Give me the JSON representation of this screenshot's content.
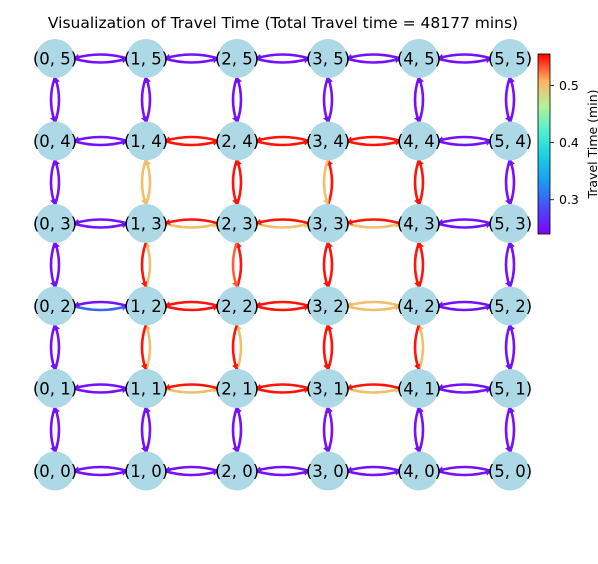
{
  "title": "Visualization of Travel Time (Total Travel time = 48177 mins)",
  "colorbar": {
    "label": "Travel Time (min)",
    "ticks": [
      {
        "value": 0.3,
        "text": "0.3"
      },
      {
        "value": 0.4,
        "text": "0.4"
      },
      {
        "value": 0.5,
        "text": "0.5"
      }
    ],
    "range": [
      0.24,
      0.555
    ],
    "colormap": "rainbow"
  },
  "grid": {
    "cols": 6,
    "rows": 6
  },
  "node_color": "#add8e6",
  "nodes": [
    {
      "label": "(0, 0)",
      "x": 0,
      "y": 0
    },
    {
      "label": "(1, 0)",
      "x": 1,
      "y": 0
    },
    {
      "label": "(2, 0)",
      "x": 2,
      "y": 0
    },
    {
      "label": "(3, 0)",
      "x": 3,
      "y": 0
    },
    {
      "label": "(4, 0)",
      "x": 4,
      "y": 0
    },
    {
      "label": "(5, 0)",
      "x": 5,
      "y": 0
    },
    {
      "label": "(0, 1)",
      "x": 0,
      "y": 1
    },
    {
      "label": "(1, 1)",
      "x": 1,
      "y": 1
    },
    {
      "label": "(2, 1)",
      "x": 2,
      "y": 1
    },
    {
      "label": "(3, 1)",
      "x": 3,
      "y": 1
    },
    {
      "label": "(4, 1)",
      "x": 4,
      "y": 1
    },
    {
      "label": "(5, 1)",
      "x": 5,
      "y": 1
    },
    {
      "label": "(0, 2)",
      "x": 0,
      "y": 2
    },
    {
      "label": "(1, 2)",
      "x": 1,
      "y": 2
    },
    {
      "label": "(2, 2)",
      "x": 2,
      "y": 2
    },
    {
      "label": "(3, 2)",
      "x": 3,
      "y": 2
    },
    {
      "label": "(4, 2)",
      "x": 4,
      "y": 2
    },
    {
      "label": "(5, 2)",
      "x": 5,
      "y": 2
    },
    {
      "label": "(0, 3)",
      "x": 0,
      "y": 3
    },
    {
      "label": "(1, 3)",
      "x": 1,
      "y": 3
    },
    {
      "label": "(2, 3)",
      "x": 2,
      "y": 3
    },
    {
      "label": "(3, 3)",
      "x": 3,
      "y": 3
    },
    {
      "label": "(4, 3)",
      "x": 4,
      "y": 3
    },
    {
      "label": "(5, 3)",
      "x": 5,
      "y": 3
    },
    {
      "label": "(0, 4)",
      "x": 0,
      "y": 4
    },
    {
      "label": "(1, 4)",
      "x": 1,
      "y": 4
    },
    {
      "label": "(2, 4)",
      "x": 2,
      "y": 4
    },
    {
      "label": "(3, 4)",
      "x": 3,
      "y": 4
    },
    {
      "label": "(4, 4)",
      "x": 4,
      "y": 4
    },
    {
      "label": "(5, 4)",
      "x": 5,
      "y": 4
    },
    {
      "label": "(0, 5)",
      "x": 0,
      "y": 5
    },
    {
      "label": "(1, 5)",
      "x": 1,
      "y": 5
    },
    {
      "label": "(2, 5)",
      "x": 2,
      "y": 5
    },
    {
      "label": "(3, 5)",
      "x": 3,
      "y": 5
    },
    {
      "label": "(4, 5)",
      "x": 4,
      "y": 5
    },
    {
      "label": "(5, 5)",
      "x": 5,
      "y": 5
    }
  ],
  "edges": [
    {
      "from": [
        0,
        5
      ],
      "to": [
        1,
        5
      ],
      "ab": 0.25,
      "ba": 0.25
    },
    {
      "from": [
        1,
        5
      ],
      "to": [
        2,
        5
      ],
      "ab": 0.25,
      "ba": 0.25
    },
    {
      "from": [
        2,
        5
      ],
      "to": [
        3,
        5
      ],
      "ab": 0.25,
      "ba": 0.25
    },
    {
      "from": [
        3,
        5
      ],
      "to": [
        4,
        5
      ],
      "ab": 0.25,
      "ba": 0.25
    },
    {
      "from": [
        4,
        5
      ],
      "to": [
        5,
        5
      ],
      "ab": 0.25,
      "ba": 0.25
    },
    {
      "from": [
        0,
        4
      ],
      "to": [
        1,
        4
      ],
      "ab": 0.25,
      "ba": 0.25
    },
    {
      "from": [
        1,
        4
      ],
      "to": [
        2,
        4
      ],
      "ab": 0.55,
      "ba": 0.55
    },
    {
      "from": [
        2,
        4
      ],
      "to": [
        3,
        4
      ],
      "ab": 0.55,
      "ba": 0.55
    },
    {
      "from": [
        3,
        4
      ],
      "to": [
        4,
        4
      ],
      "ab": 0.55,
      "ba": 0.55
    },
    {
      "from": [
        4,
        4
      ],
      "to": [
        5,
        4
      ],
      "ab": 0.25,
      "ba": 0.25
    },
    {
      "from": [
        0,
        3
      ],
      "to": [
        1,
        3
      ],
      "ab": 0.25,
      "ba": 0.25
    },
    {
      "from": [
        1,
        3
      ],
      "to": [
        2,
        3
      ],
      "ab": 0.5,
      "ba": 0.55
    },
    {
      "from": [
        2,
        3
      ],
      "to": [
        3,
        3
      ],
      "ab": 0.5,
      "ba": 0.55
    },
    {
      "from": [
        3,
        3
      ],
      "to": [
        4,
        3
      ],
      "ab": 0.5,
      "ba": 0.55
    },
    {
      "from": [
        4,
        3
      ],
      "to": [
        5,
        3
      ],
      "ab": 0.25,
      "ba": 0.25
    },
    {
      "from": [
        0,
        2
      ],
      "to": [
        1,
        2
      ],
      "ab": 0.3,
      "ba": 0.25
    },
    {
      "from": [
        1,
        2
      ],
      "to": [
        2,
        2
      ],
      "ab": 0.55,
      "ba": 0.55
    },
    {
      "from": [
        2,
        2
      ],
      "to": [
        3,
        2
      ],
      "ab": 0.55,
      "ba": 0.55
    },
    {
      "from": [
        3,
        2
      ],
      "to": [
        4,
        2
      ],
      "ab": 0.5,
      "ba": 0.5
    },
    {
      "from": [
        4,
        2
      ],
      "to": [
        5,
        2
      ],
      "ab": 0.25,
      "ba": 0.25
    },
    {
      "from": [
        0,
        1
      ],
      "to": [
        1,
        1
      ],
      "ab": 0.25,
      "ba": 0.25
    },
    {
      "from": [
        1,
        1
      ],
      "to": [
        2,
        1
      ],
      "ab": 0.5,
      "ba": 0.55
    },
    {
      "from": [
        2,
        1
      ],
      "to": [
        3,
        1
      ],
      "ab": 0.55,
      "ba": 0.55
    },
    {
      "from": [
        3,
        1
      ],
      "to": [
        4,
        1
      ],
      "ab": 0.5,
      "ba": 0.55
    },
    {
      "from": [
        4,
        1
      ],
      "to": [
        5,
        1
      ],
      "ab": 0.25,
      "ba": 0.25
    },
    {
      "from": [
        0,
        0
      ],
      "to": [
        1,
        0
      ],
      "ab": 0.25,
      "ba": 0.25
    },
    {
      "from": [
        1,
        0
      ],
      "to": [
        2,
        0
      ],
      "ab": 0.25,
      "ba": 0.25
    },
    {
      "from": [
        2,
        0
      ],
      "to": [
        3,
        0
      ],
      "ab": 0.25,
      "ba": 0.25
    },
    {
      "from": [
        3,
        0
      ],
      "to": [
        4,
        0
      ],
      "ab": 0.25,
      "ba": 0.25
    },
    {
      "from": [
        4,
        0
      ],
      "to": [
        5,
        0
      ],
      "ab": 0.25,
      "ba": 0.25
    },
    {
      "from": [
        0,
        4
      ],
      "to": [
        0,
        5
      ],
      "ab": 0.25,
      "ba": 0.25
    },
    {
      "from": [
        0,
        3
      ],
      "to": [
        0,
        4
      ],
      "ab": 0.25,
      "ba": 0.25
    },
    {
      "from": [
        0,
        2
      ],
      "to": [
        0,
        3
      ],
      "ab": 0.25,
      "ba": 0.25
    },
    {
      "from": [
        0,
        1
      ],
      "to": [
        0,
        2
      ],
      "ab": 0.25,
      "ba": 0.25
    },
    {
      "from": [
        0,
        0
      ],
      "to": [
        0,
        1
      ],
      "ab": 0.25,
      "ba": 0.25
    },
    {
      "from": [
        1,
        4
      ],
      "to": [
        1,
        5
      ],
      "ab": 0.25,
      "ba": 0.25
    },
    {
      "from": [
        1,
        3
      ],
      "to": [
        1,
        4
      ],
      "ab": 0.5,
      "ba": 0.5
    },
    {
      "from": [
        1,
        2
      ],
      "to": [
        1,
        3
      ],
      "ab": 0.5,
      "ba": 0.55
    },
    {
      "from": [
        1,
        1
      ],
      "to": [
        1,
        2
      ],
      "ab": 0.5,
      "ba": 0.55
    },
    {
      "from": [
        1,
        0
      ],
      "to": [
        1,
        1
      ],
      "ab": 0.25,
      "ba": 0.25
    },
    {
      "from": [
        2,
        4
      ],
      "to": [
        2,
        5
      ],
      "ab": 0.25,
      "ba": 0.25
    },
    {
      "from": [
        2,
        3
      ],
      "to": [
        2,
        4
      ],
      "ab": 0.55,
      "ba": 0.55
    },
    {
      "from": [
        2,
        2
      ],
      "to": [
        2,
        3
      ],
      "ab": 0.55,
      "ba": 0.53
    },
    {
      "from": [
        2,
        1
      ],
      "to": [
        2,
        2
      ],
      "ab": 0.5,
      "ba": 0.55
    },
    {
      "from": [
        2,
        0
      ],
      "to": [
        2,
        1
      ],
      "ab": 0.25,
      "ba": 0.25
    },
    {
      "from": [
        3,
        4
      ],
      "to": [
        3,
        5
      ],
      "ab": 0.25,
      "ba": 0.25
    },
    {
      "from": [
        3,
        3
      ],
      "to": [
        3,
        4
      ],
      "ab": 0.55,
      "ba": 0.5
    },
    {
      "from": [
        3,
        2
      ],
      "to": [
        3,
        3
      ],
      "ab": 0.55,
      "ba": 0.55
    },
    {
      "from": [
        3,
        1
      ],
      "to": [
        3,
        2
      ],
      "ab": 0.55,
      "ba": 0.55
    },
    {
      "from": [
        3,
        0
      ],
      "to": [
        3,
        1
      ],
      "ab": 0.25,
      "ba": 0.25
    },
    {
      "from": [
        4,
        4
      ],
      "to": [
        4,
        5
      ],
      "ab": 0.25,
      "ba": 0.25
    },
    {
      "from": [
        4,
        3
      ],
      "to": [
        4,
        4
      ],
      "ab": 0.55,
      "ba": 0.55
    },
    {
      "from": [
        4,
        2
      ],
      "to": [
        4,
        3
      ],
      "ab": 0.55,
      "ba": 0.55
    },
    {
      "from": [
        4,
        1
      ],
      "to": [
        4,
        2
      ],
      "ab": 0.5,
      "ba": 0.55
    },
    {
      "from": [
        4,
        0
      ],
      "to": [
        4,
        1
      ],
      "ab": 0.25,
      "ba": 0.25
    },
    {
      "from": [
        5,
        4
      ],
      "to": [
        5,
        5
      ],
      "ab": 0.25,
      "ba": 0.25
    },
    {
      "from": [
        5,
        3
      ],
      "to": [
        5,
        4
      ],
      "ab": 0.25,
      "ba": 0.25
    },
    {
      "from": [
        5,
        2
      ],
      "to": [
        5,
        3
      ],
      "ab": 0.25,
      "ba": 0.25
    },
    {
      "from": [
        5,
        1
      ],
      "to": [
        5,
        2
      ],
      "ab": 0.25,
      "ba": 0.25
    },
    {
      "from": [
        5,
        0
      ],
      "to": [
        5,
        1
      ],
      "ab": 0.25,
      "ba": 0.25
    }
  ]
}
